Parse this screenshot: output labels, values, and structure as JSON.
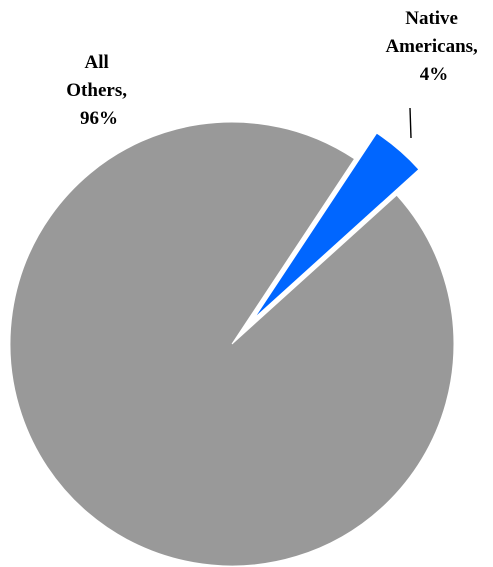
{
  "chart_data": {
    "type": "pie",
    "slices": [
      {
        "label_lines": [
          "Native",
          "Americans,",
          "4%"
        ],
        "value": 4,
        "color": "#0066ff",
        "exploded": true
      },
      {
        "label_lines": [
          "All",
          "Others,",
          "96%"
        ],
        "value": 96,
        "color": "#999999",
        "exploded": false
      }
    ],
    "legend": "none"
  }
}
